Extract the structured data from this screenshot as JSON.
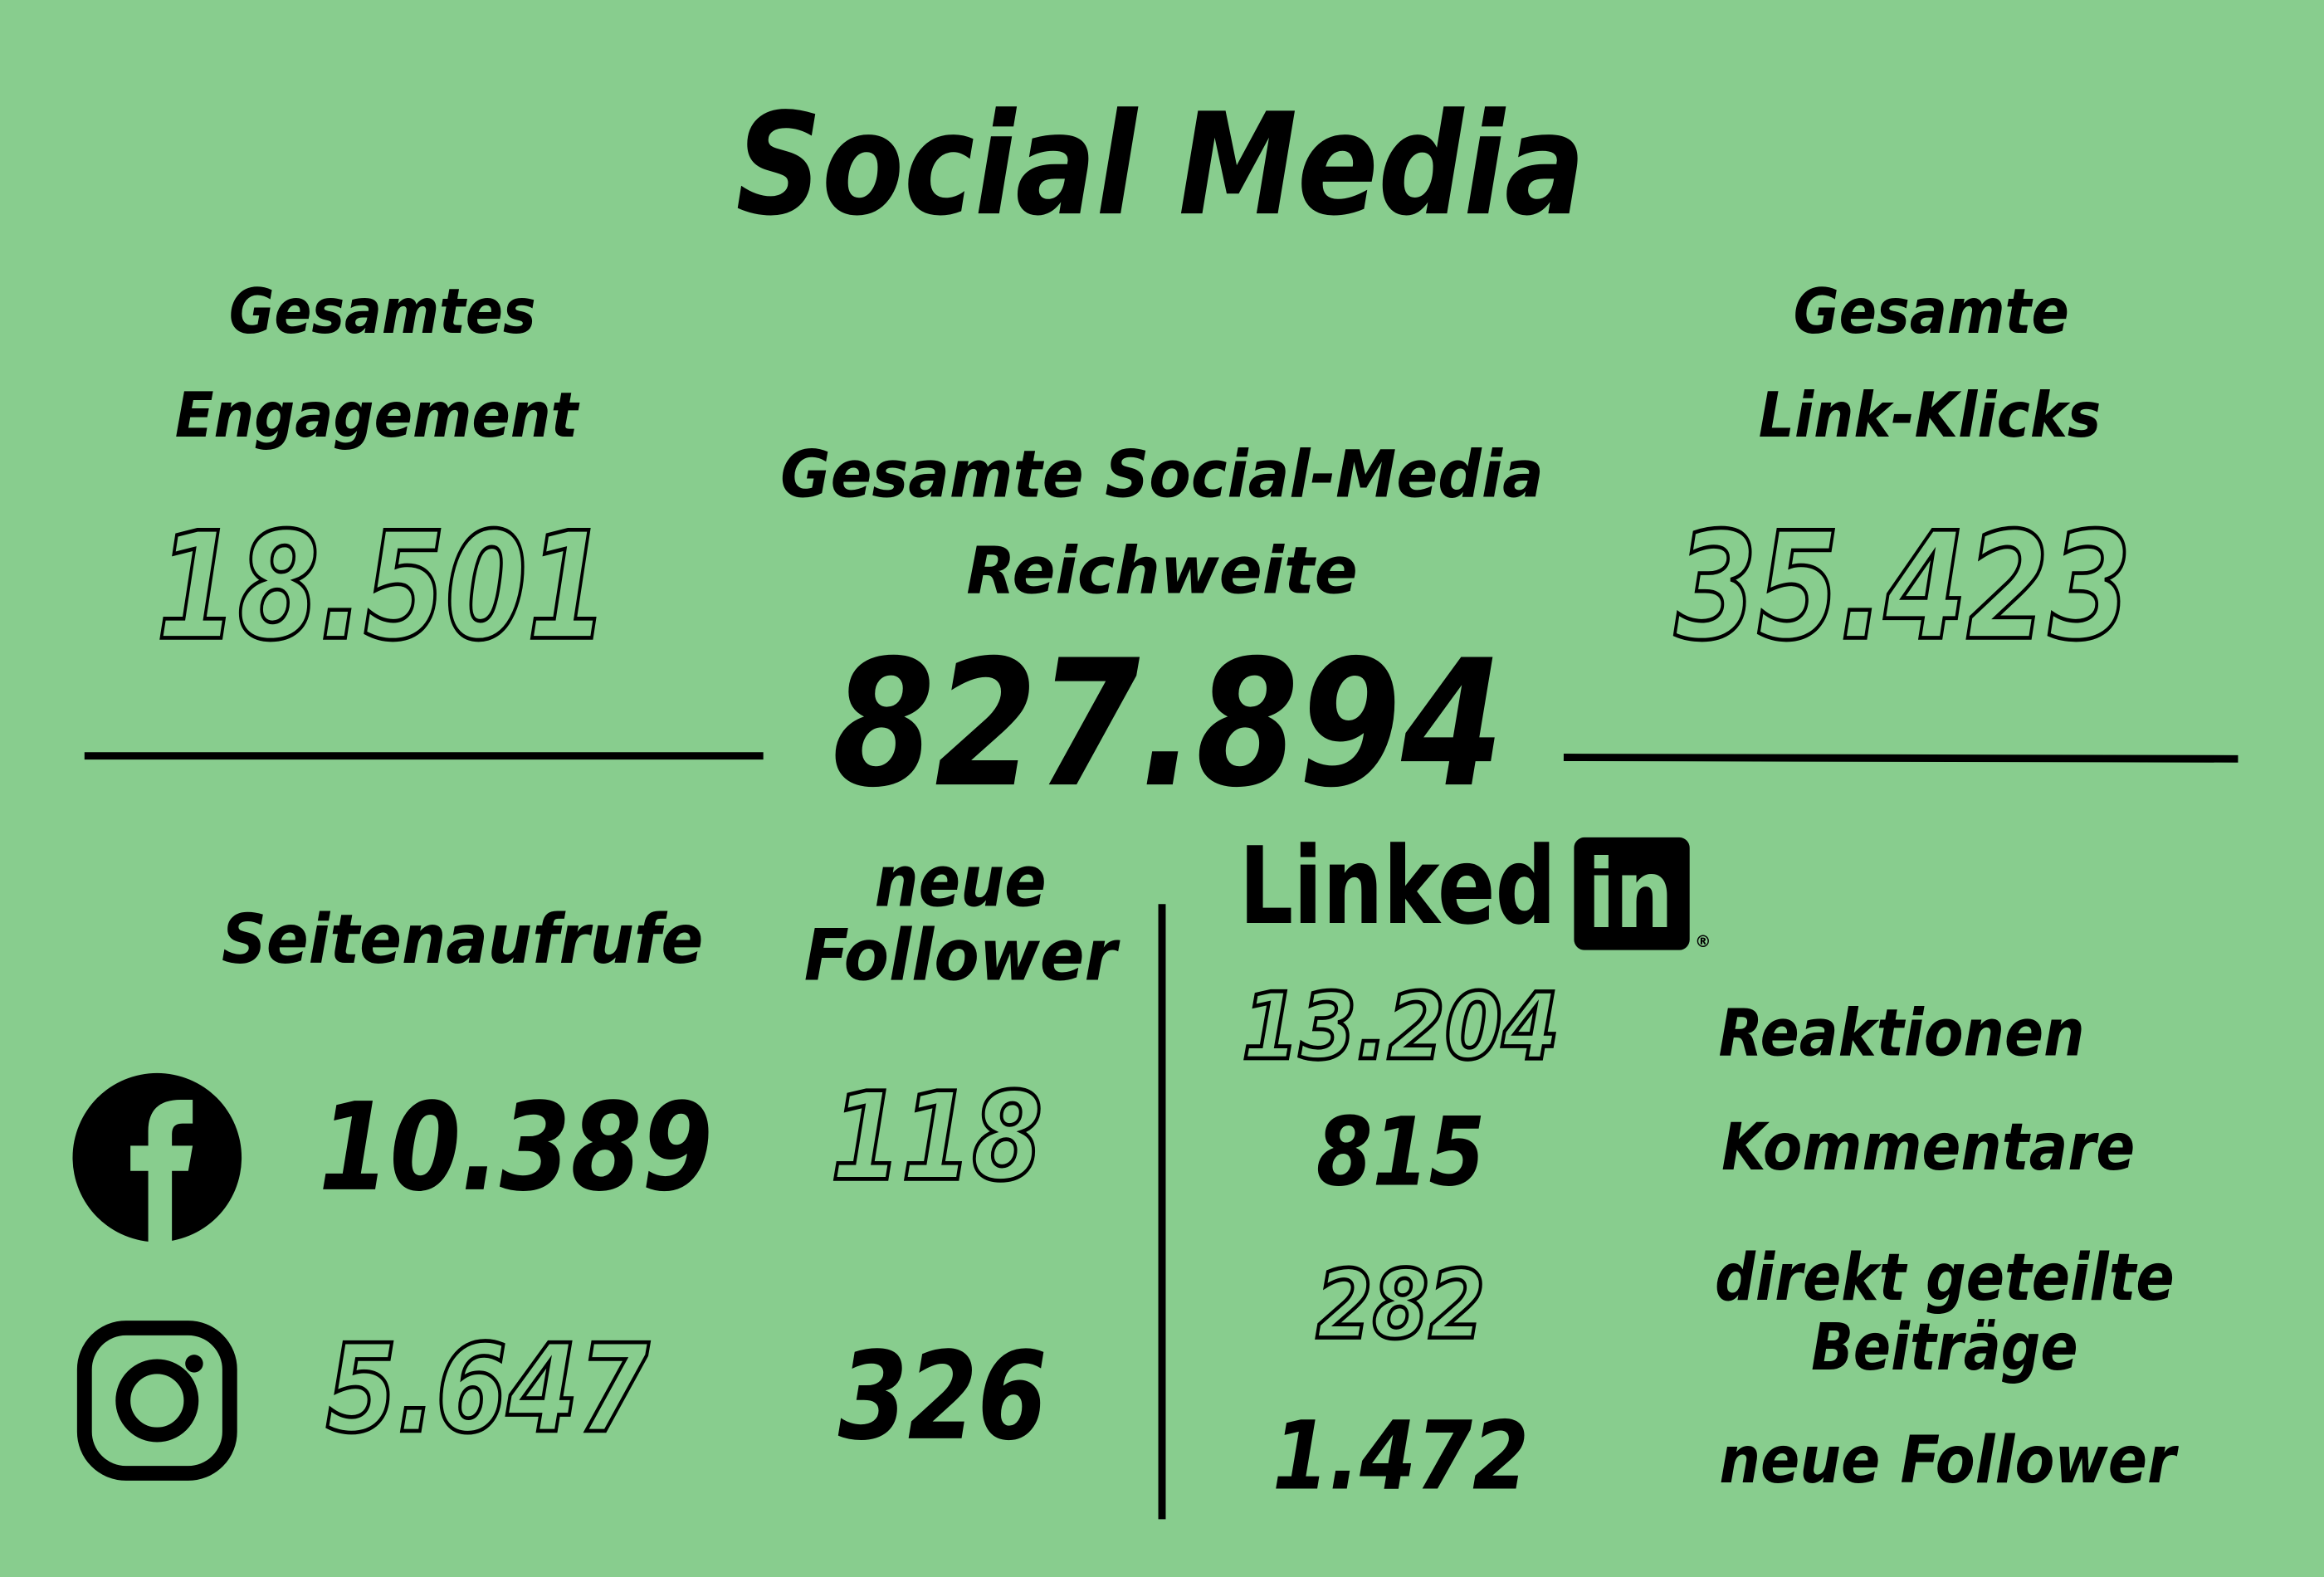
{
  "title": "Social Media",
  "totals": {
    "engagement": {
      "label": [
        "Gesamtes",
        "Engagement"
      ],
      "value": "18.501"
    },
    "reach": {
      "label": [
        "Gesamte Social-Media",
        "Reichweite"
      ],
      "value": "827.894"
    },
    "link_clicks": {
      "label": [
        "Gesamte",
        "Link-Klicks"
      ],
      "value": "35.423"
    }
  },
  "platforms": {
    "headers": {
      "page_views": "Seitenaufrufe",
      "new_followers": [
        "neue",
        "Follower"
      ]
    },
    "facebook": {
      "page_views": "10.389",
      "new_followers": "118"
    },
    "instagram": {
      "page_views": "5.647",
      "new_followers": "326"
    }
  },
  "linkedin": {
    "logo": [
      "Linked",
      "in",
      "®"
    ],
    "stats": [
      {
        "value": "13.204",
        "label": [
          "Reaktionen"
        ]
      },
      {
        "value": "815",
        "label": [
          "Kommentare"
        ]
      },
      {
        "value": "282",
        "label": [
          "direkt geteilte",
          "Beiträge"
        ]
      },
      {
        "value": "1.472",
        "label": [
          "neue Follower"
        ]
      }
    ]
  }
}
